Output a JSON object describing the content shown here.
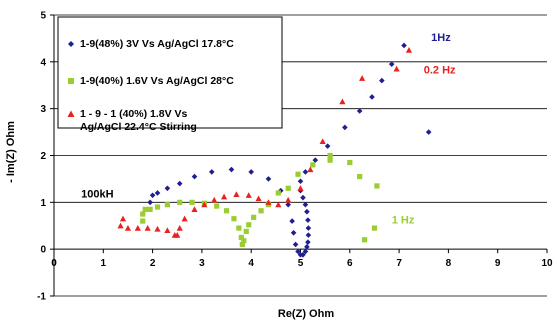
{
  "chart_data": {
    "type": "scatter",
    "xlabel": "Re(Z) Ohm",
    "ylabel": "- Im(Z) Ohm",
    "xlim": [
      0,
      10
    ],
    "ylim": [
      -1,
      5
    ],
    "x_ticks": [
      "0",
      "1",
      "2",
      "3",
      "4",
      "5",
      "6",
      "7",
      "8",
      "9",
      "10"
    ],
    "y_ticks": [
      "-1",
      "0",
      "1",
      "2",
      "3",
      "4",
      "5"
    ],
    "grid": "horizontal",
    "legend_position": "top-left",
    "series": [
      {
        "name": "1-9(48%) 3V Vs Ag/AgCl 17.8°C",
        "color": "#1f1f8f",
        "marker": "diamond",
        "points": [
          [
            1.95,
            1.0
          ],
          [
            2.0,
            1.15
          ],
          [
            2.1,
            1.2
          ],
          [
            2.3,
            1.3
          ],
          [
            2.55,
            1.4
          ],
          [
            2.85,
            1.55
          ],
          [
            3.2,
            1.65
          ],
          [
            3.6,
            1.7
          ],
          [
            4.0,
            1.65
          ],
          [
            4.35,
            1.5
          ],
          [
            4.6,
            1.25
          ],
          [
            4.75,
            0.95
          ],
          [
            4.83,
            0.6
          ],
          [
            4.86,
            0.35
          ],
          [
            4.9,
            0.1
          ],
          [
            4.95,
            -0.05
          ],
          [
            5.0,
            -0.12
          ],
          [
            5.05,
            -0.12
          ],
          [
            5.1,
            -0.05
          ],
          [
            5.13,
            0.05
          ],
          [
            5.15,
            0.15
          ],
          [
            5.16,
            0.3
          ],
          [
            5.16,
            0.45
          ],
          [
            5.15,
            0.62
          ],
          [
            5.13,
            0.8
          ],
          [
            5.1,
            0.95
          ],
          [
            5.05,
            1.1
          ],
          [
            5.0,
            1.25
          ],
          [
            5.0,
            1.45
          ],
          [
            5.1,
            1.65
          ],
          [
            5.3,
            1.9
          ],
          [
            5.55,
            2.2
          ],
          [
            5.9,
            2.6
          ],
          [
            6.2,
            2.95
          ],
          [
            6.45,
            3.25
          ],
          [
            6.65,
            3.6
          ],
          [
            6.85,
            3.95
          ],
          [
            7.1,
            4.35
          ],
          [
            7.6,
            2.5
          ]
        ]
      },
      {
        "name": "1-9(40%) 1.6V Vs Ag/AgCl 28°C",
        "color": "#9acd32",
        "marker": "square",
        "points": [
          [
            1.8,
            0.6
          ],
          [
            1.8,
            0.75
          ],
          [
            1.85,
            0.85
          ],
          [
            1.95,
            0.85
          ],
          [
            2.1,
            0.9
          ],
          [
            2.3,
            0.95
          ],
          [
            2.55,
            1.0
          ],
          [
            2.8,
            1.0
          ],
          [
            3.05,
            0.98
          ],
          [
            3.3,
            0.92
          ],
          [
            3.5,
            0.82
          ],
          [
            3.65,
            0.65
          ],
          [
            3.75,
            0.45
          ],
          [
            3.8,
            0.25
          ],
          [
            3.82,
            0.1
          ],
          [
            3.85,
            0.18
          ],
          [
            3.9,
            0.38
          ],
          [
            3.95,
            0.52
          ],
          [
            4.05,
            0.68
          ],
          [
            4.2,
            0.82
          ],
          [
            4.35,
            0.95
          ],
          [
            4.55,
            1.2
          ],
          [
            4.75,
            1.3
          ],
          [
            4.95,
            1.6
          ],
          [
            5.25,
            1.8
          ],
          [
            5.6,
            1.9
          ],
          [
            5.6,
            2.0
          ],
          [
            6.0,
            1.85
          ],
          [
            6.2,
            1.55
          ],
          [
            6.55,
            1.35
          ],
          [
            6.5,
            0.45
          ],
          [
            6.3,
            0.2
          ]
        ]
      },
      {
        "name": "1 - 9 - 1 (40%) 1.8V Vs Ag/AgCl 22.4°C Stirring",
        "color": "#e8221f",
        "marker": "triangle",
        "points": [
          [
            1.35,
            0.5
          ],
          [
            1.4,
            0.65
          ],
          [
            1.5,
            0.45
          ],
          [
            1.7,
            0.45
          ],
          [
            1.9,
            0.45
          ],
          [
            2.1,
            0.43
          ],
          [
            2.3,
            0.4
          ],
          [
            2.45,
            0.3
          ],
          [
            2.5,
            0.3
          ],
          [
            2.55,
            0.45
          ],
          [
            2.65,
            0.65
          ],
          [
            2.85,
            0.85
          ],
          [
            3.05,
            0.95
          ],
          [
            3.25,
            1.05
          ],
          [
            3.45,
            1.12
          ],
          [
            3.7,
            1.17
          ],
          [
            3.95,
            1.15
          ],
          [
            4.15,
            1.08
          ],
          [
            4.35,
            1.0
          ],
          [
            4.55,
            0.95
          ],
          [
            4.75,
            1.05
          ],
          [
            5.0,
            1.3
          ],
          [
            5.2,
            1.7
          ],
          [
            5.45,
            2.3
          ],
          [
            5.85,
            3.15
          ],
          [
            6.25,
            3.65
          ],
          [
            6.95,
            3.85
          ],
          [
            7.2,
            4.25
          ]
        ]
      }
    ],
    "annotations": [
      {
        "text": "1Hz",
        "x": 7.65,
        "y": 4.45,
        "color": "#1f1f8f"
      },
      {
        "text": "0.2 Hz",
        "x": 7.5,
        "y": 3.75,
        "color": "#e8221f"
      },
      {
        "text": "1 Hz",
        "x": 6.85,
        "y": 0.55,
        "color": "#9acd32"
      },
      {
        "text": "100kH",
        "x": 0.55,
        "y": 1.1,
        "color": "#000000"
      }
    ]
  }
}
